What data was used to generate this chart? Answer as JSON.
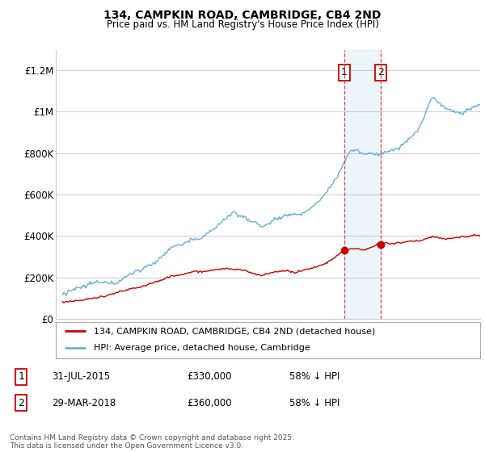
{
  "title1": "134, CAMPKIN ROAD, CAMBRIDGE, CB4 2ND",
  "title2": "Price paid vs. HM Land Registry's House Price Index (HPI)",
  "background_color": "#ffffff",
  "plot_bg_color": "#ffffff",
  "grid_color": "#cccccc",
  "hpi_color": "#6aaed6",
  "price_color": "#cc0000",
  "sale1_date": 2015.58,
  "sale1_price": 330000,
  "sale2_date": 2018.24,
  "sale2_price": 360000,
  "legend_label_price": "134, CAMPKIN ROAD, CAMBRIDGE, CB4 2ND (detached house)",
  "legend_label_hpi": "HPI: Average price, detached house, Cambridge",
  "copyright": "Contains HM Land Registry data © Crown copyright and database right 2025.\nThis data is licensed under the Open Government Licence v3.0.",
  "ylim": [
    0,
    1300000
  ],
  "xlim_start": 1994.5,
  "xlim_end": 2025.5,
  "yticks": [
    0,
    200000,
    400000,
    600000,
    800000,
    1000000,
    1200000
  ],
  "ylabels": [
    "£0",
    "£200K",
    "£400K",
    "£600K",
    "£800K",
    "£1M",
    "£1.2M"
  ]
}
